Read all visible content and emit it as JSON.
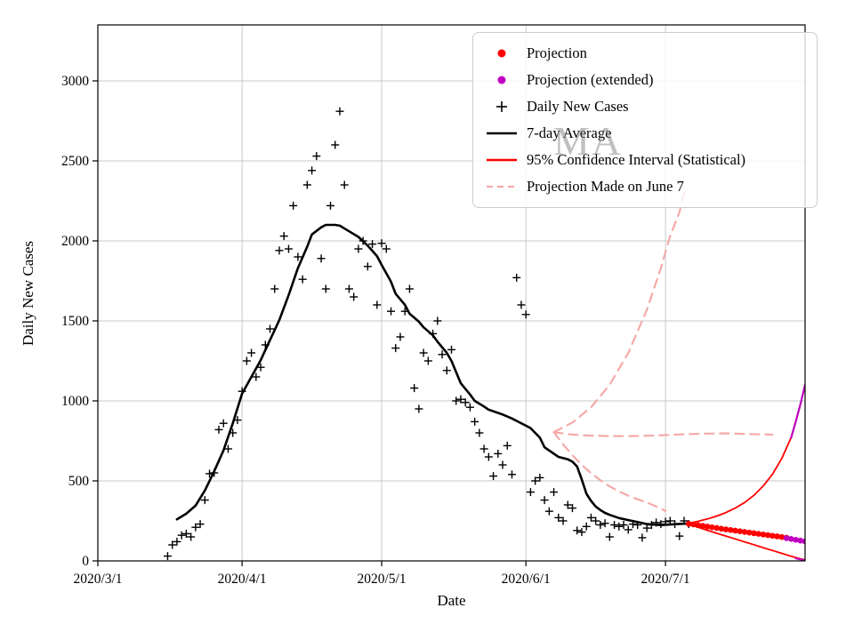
{
  "chart_data": {
    "type": "line",
    "title": "",
    "xlabel": "Date",
    "ylabel": "Daily New Cases",
    "watermark": "MA",
    "x_unit": "days since 2020/3/1",
    "xlim": [
      0,
      152
    ],
    "ylim": [
      0,
      3350
    ],
    "grid": true,
    "x_ticks": [
      {
        "day": 0,
        "label": "2020/3/1"
      },
      {
        "day": 31,
        "label": "2020/4/1"
      },
      {
        "day": 61,
        "label": "2020/5/1"
      },
      {
        "day": 92,
        "label": "2020/6/1"
      },
      {
        "day": 122,
        "label": "2020/7/1"
      }
    ],
    "y_ticks": [
      0,
      500,
      1000,
      1500,
      2000,
      2500,
      3000
    ],
    "colors": {
      "grid": "#c9c9c9",
      "axis": "#000000",
      "red": "#ff0000",
      "magenta": "#bf00bf",
      "pink": "#f5a9a9",
      "black": "#000000",
      "watermark": "#828282"
    },
    "legend": {
      "position": "upper right",
      "entries": [
        {
          "label": "Projection",
          "marker": "dot",
          "color": "#ff0000"
        },
        {
          "label": "Projection (extended)",
          "marker": "dot",
          "color": "#bf00bf"
        },
        {
          "label": "Daily New Cases",
          "marker": "plus",
          "color": "#000000"
        },
        {
          "label": "7-day Average",
          "marker": "line",
          "color": "#000000"
        },
        {
          "label": "95% Confidence Interval (Statistical)",
          "marker": "line",
          "color": "#ff0000"
        },
        {
          "label": "Projection Made on June 7",
          "marker": "dashed",
          "color": "#f5a9a9"
        }
      ]
    },
    "series": [
      {
        "name": "projection-made-june7-upper",
        "style": "dashed",
        "color": "#f5a9a9",
        "width": 2.2,
        "points": [
          [
            98,
            805
          ],
          [
            102,
            865
          ],
          [
            106,
            960
          ],
          [
            110,
            1100
          ],
          [
            114,
            1300
          ],
          [
            118,
            1570
          ],
          [
            121,
            1830
          ],
          [
            123,
            2030
          ],
          [
            125,
            2180
          ],
          [
            126,
            2300
          ]
        ]
      },
      {
        "name": "projection-made-june7-mid",
        "style": "dashed",
        "color": "#f5a9a9",
        "width": 2.2,
        "points": [
          [
            98,
            805
          ],
          [
            101,
            792
          ],
          [
            105,
            784
          ],
          [
            110,
            780
          ],
          [
            115,
            780
          ],
          [
            120,
            784
          ],
          [
            125,
            790
          ],
          [
            130,
            795
          ],
          [
            135,
            797
          ],
          [
            140,
            793
          ],
          [
            145,
            789
          ]
        ]
      },
      {
        "name": "projection-made-june7-lower",
        "style": "dashed",
        "color": "#f5a9a9",
        "width": 2.2,
        "points": [
          [
            98,
            805
          ],
          [
            100,
            728
          ],
          [
            102,
            660
          ],
          [
            104,
            600
          ],
          [
            106,
            548
          ],
          [
            108,
            504
          ],
          [
            110,
            466
          ],
          [
            112,
            434
          ],
          [
            114,
            408
          ],
          [
            116,
            385
          ],
          [
            118,
            365
          ],
          [
            120,
            340
          ],
          [
            122,
            312
          ]
        ]
      },
      {
        "name": "ci-95-upper",
        "style": "line",
        "color": "#ff0000",
        "width": 1.8,
        "points": [
          [
            127,
            235
          ],
          [
            129,
            247
          ],
          [
            131,
            262
          ],
          [
            133,
            280
          ],
          [
            135,
            302
          ],
          [
            137,
            330
          ],
          [
            139,
            365
          ],
          [
            141,
            410
          ],
          [
            143,
            468
          ],
          [
            145,
            542
          ],
          [
            147,
            640
          ],
          [
            149,
            770
          ]
        ]
      },
      {
        "name": "ci-95-lower",
        "style": "line",
        "color": "#ff0000",
        "width": 1.8,
        "points": [
          [
            127,
            228
          ],
          [
            129,
            210
          ],
          [
            131,
            191
          ],
          [
            133,
            173
          ],
          [
            135,
            155
          ],
          [
            137,
            137
          ],
          [
            139,
            119
          ],
          [
            141,
            101
          ],
          [
            143,
            83
          ],
          [
            145,
            65
          ],
          [
            147,
            47
          ],
          [
            149,
            29
          ],
          [
            151,
            13
          ],
          [
            152,
            7
          ]
        ]
      },
      {
        "name": "ci-95-upper-extended",
        "style": "line",
        "color": "#bf00bf",
        "width": 2.2,
        "points": [
          [
            149,
            770
          ],
          [
            150,
            870
          ],
          [
            151,
            980
          ],
          [
            152,
            1100
          ]
        ]
      },
      {
        "name": "ci-95-lower-extended",
        "style": "line",
        "color": "#bf00bf",
        "width": 2.0,
        "points": [
          [
            150,
            16
          ],
          [
            151,
            9
          ],
          [
            152,
            3
          ]
        ]
      },
      {
        "name": "seven-day-average",
        "style": "line",
        "color": "#000000",
        "width": 2.6,
        "points": [
          [
            17,
            260
          ],
          [
            19,
            295
          ],
          [
            21,
            345
          ],
          [
            23,
            440
          ],
          [
            25,
            560
          ],
          [
            27,
            690
          ],
          [
            29,
            860
          ],
          [
            31,
            1045
          ],
          [
            33,
            1150
          ],
          [
            35,
            1255
          ],
          [
            37,
            1380
          ],
          [
            39,
            1505
          ],
          [
            41,
            1660
          ],
          [
            43,
            1830
          ],
          [
            45,
            1965
          ],
          [
            46,
            2040
          ],
          [
            48,
            2085
          ],
          [
            49,
            2100
          ],
          [
            51,
            2100
          ],
          [
            52,
            2095
          ],
          [
            54,
            2060
          ],
          [
            56,
            2025
          ],
          [
            58,
            1970
          ],
          [
            60,
            1905
          ],
          [
            61,
            1850
          ],
          [
            63,
            1745
          ],
          [
            64,
            1670
          ],
          [
            66,
            1600
          ],
          [
            67,
            1545
          ],
          [
            69,
            1495
          ],
          [
            70,
            1460
          ],
          [
            72,
            1410
          ],
          [
            73,
            1370
          ],
          [
            75,
            1300
          ],
          [
            76,
            1250
          ],
          [
            78,
            1110
          ],
          [
            80,
            1040
          ],
          [
            81,
            1000
          ],
          [
            83,
            965
          ],
          [
            84,
            945
          ],
          [
            86,
            925
          ],
          [
            87,
            915
          ],
          [
            89,
            890
          ],
          [
            90,
            875
          ],
          [
            92,
            845
          ],
          [
            93,
            830
          ],
          [
            95,
            770
          ],
          [
            96,
            710
          ],
          [
            98,
            670
          ],
          [
            99,
            650
          ],
          [
            101,
            635
          ],
          [
            102,
            620
          ],
          [
            103,
            590
          ],
          [
            104,
            510
          ],
          [
            105,
            420
          ],
          [
            106,
            375
          ],
          [
            107,
            340
          ],
          [
            108,
            318
          ],
          [
            109,
            300
          ],
          [
            110,
            288
          ],
          [
            112,
            268
          ],
          [
            114,
            255
          ],
          [
            116,
            243
          ],
          [
            118,
            230
          ],
          [
            120,
            226
          ],
          [
            121,
            224
          ],
          [
            123,
            227
          ],
          [
            125,
            231
          ],
          [
            127,
            234
          ]
        ]
      },
      {
        "name": "daily-new-cases",
        "style": "plus",
        "color": "#000000",
        "points": [
          [
            15,
            30
          ],
          [
            16,
            100
          ],
          [
            17,
            120
          ],
          [
            18,
            160
          ],
          [
            19,
            170
          ],
          [
            20,
            150
          ],
          [
            21,
            210
          ],
          [
            22,
            230
          ],
          [
            23,
            380
          ],
          [
            24,
            545
          ],
          [
            25,
            550
          ],
          [
            26,
            820
          ],
          [
            27,
            860
          ],
          [
            28,
            700
          ],
          [
            29,
            800
          ],
          [
            30,
            880
          ],
          [
            31,
            1060
          ],
          [
            32,
            1250
          ],
          [
            33,
            1300
          ],
          [
            34,
            1150
          ],
          [
            35,
            1210
          ],
          [
            36,
            1350
          ],
          [
            37,
            1450
          ],
          [
            38,
            1700
          ],
          [
            39,
            1940
          ],
          [
            40,
            2030
          ],
          [
            41,
            1950
          ],
          [
            42,
            2220
          ],
          [
            43,
            1900
          ],
          [
            44,
            1760
          ],
          [
            45,
            2350
          ],
          [
            46,
            2440
          ],
          [
            47,
            2530
          ],
          [
            48,
            1890
          ],
          [
            49,
            1700
          ],
          [
            50,
            2220
          ],
          [
            51,
            2600
          ],
          [
            52,
            2810
          ],
          [
            53,
            2350
          ],
          [
            54,
            1700
          ],
          [
            55,
            1650
          ],
          [
            56,
            1950
          ],
          [
            57,
            2000
          ],
          [
            58,
            1840
          ],
          [
            59,
            1980
          ],
          [
            60,
            1600
          ],
          [
            61,
            1985
          ],
          [
            62,
            1950
          ],
          [
            63,
            1560
          ],
          [
            64,
            1330
          ],
          [
            65,
            1400
          ],
          [
            66,
            1560
          ],
          [
            67,
            1700
          ],
          [
            68,
            1080
          ],
          [
            69,
            950
          ],
          [
            70,
            1300
          ],
          [
            71,
            1250
          ],
          [
            72,
            1420
          ],
          [
            73,
            1500
          ],
          [
            74,
            1290
          ],
          [
            75,
            1190
          ],
          [
            76,
            1320
          ],
          [
            77,
            1000
          ],
          [
            78,
            1010
          ],
          [
            79,
            990
          ],
          [
            80,
            960
          ],
          [
            81,
            870
          ],
          [
            82,
            800
          ],
          [
            83,
            700
          ],
          [
            84,
            650
          ],
          [
            85,
            530
          ],
          [
            86,
            670
          ],
          [
            87,
            600
          ],
          [
            88,
            720
          ],
          [
            89,
            540
          ],
          [
            90,
            1770
          ],
          [
            91,
            1600
          ],
          [
            92,
            1540
          ],
          [
            93,
            430
          ],
          [
            94,
            500
          ],
          [
            95,
            520
          ],
          [
            96,
            380
          ],
          [
            97,
            310
          ],
          [
            98,
            430
          ],
          [
            99,
            270
          ],
          [
            100,
            250
          ],
          [
            101,
            350
          ],
          [
            102,
            330
          ],
          [
            103,
            190
          ],
          [
            104,
            180
          ],
          [
            105,
            215
          ],
          [
            106,
            270
          ],
          [
            107,
            250
          ],
          [
            108,
            225
          ],
          [
            109,
            235
          ],
          [
            110,
            150
          ],
          [
            111,
            225
          ],
          [
            112,
            215
          ],
          [
            113,
            225
          ],
          [
            114,
            195
          ],
          [
            115,
            230
          ],
          [
            116,
            225
          ],
          [
            117,
            145
          ],
          [
            118,
            205
          ],
          [
            119,
            225
          ],
          [
            120,
            240
          ],
          [
            121,
            230
          ],
          [
            122,
            245
          ],
          [
            123,
            250
          ],
          [
            124,
            230
          ],
          [
            125,
            155
          ],
          [
            126,
            250
          ],
          [
            127,
            230
          ]
        ]
      },
      {
        "name": "projection",
        "style": "dots",
        "color": "#ff0000",
        "points": [
          [
            127,
            232
          ],
          [
            128,
            228
          ],
          [
            129,
            223
          ],
          [
            130,
            219
          ],
          [
            131,
            214
          ],
          [
            132,
            210
          ],
          [
            133,
            206
          ],
          [
            134,
            201
          ],
          [
            135,
            197
          ],
          [
            136,
            193
          ],
          [
            137,
            189
          ],
          [
            138,
            185
          ],
          [
            139,
            181
          ],
          [
            140,
            177
          ],
          [
            141,
            173
          ],
          [
            142,
            169
          ],
          [
            143,
            165
          ],
          [
            144,
            161
          ],
          [
            145,
            157
          ],
          [
            146,
            153
          ],
          [
            147,
            149
          ],
          [
            148,
            145
          ]
        ]
      },
      {
        "name": "projection-extended",
        "style": "dots",
        "color": "#bf00bf",
        "points": [
          [
            148,
            142
          ],
          [
            149,
            137
          ],
          [
            150,
            132
          ],
          [
            151,
            127
          ],
          [
            152,
            122
          ]
        ]
      }
    ]
  }
}
